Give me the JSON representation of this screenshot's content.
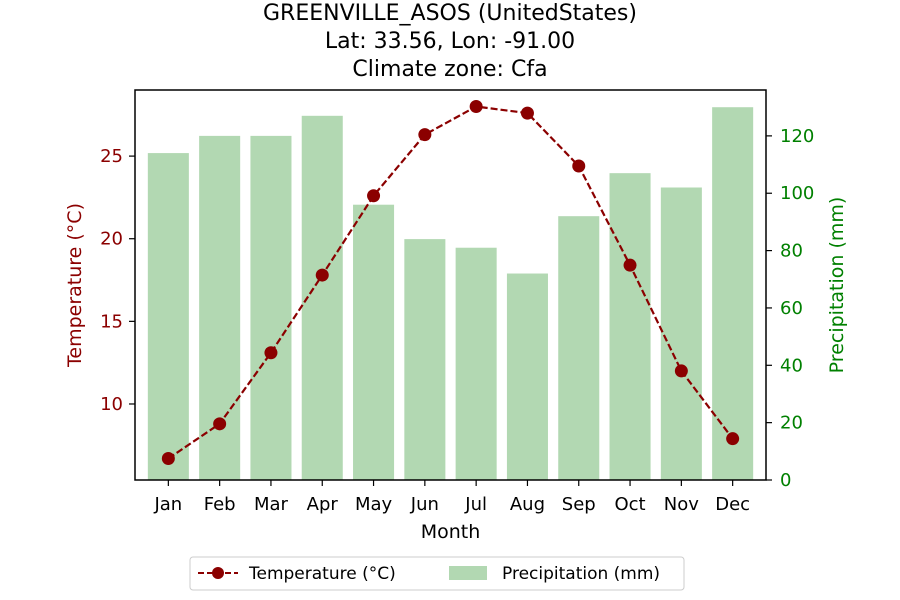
{
  "header": {
    "title_line1": "GREENVILLE_ASOS (UnitedStates)",
    "title_line2": "Lat: 33.56, Lon: -91.00",
    "title_line3": "Climate zone: Cfa"
  },
  "colors": {
    "temperature": "#8b0000",
    "precipitation_bar": "#b2d8b2",
    "precipitation_axis": "#008000"
  },
  "chart_data": {
    "type": "bar+line",
    "categories": [
      "Jan",
      "Feb",
      "Mar",
      "Apr",
      "May",
      "Jun",
      "Jul",
      "Aug",
      "Sep",
      "Oct",
      "Nov",
      "Dec"
    ],
    "xlabel": "Month",
    "series": [
      {
        "name": "Temperature (°C)",
        "type": "line",
        "axis": "left",
        "values": [
          6.7,
          8.8,
          13.1,
          17.8,
          22.6,
          26.3,
          28.0,
          27.6,
          24.4,
          18.4,
          12.0,
          7.9
        ]
      },
      {
        "name": "Precipitation (mm)",
        "type": "bar",
        "axis": "right",
        "values": [
          114,
          120,
          120,
          127,
          96,
          84,
          81,
          72,
          92,
          107,
          102,
          130
        ]
      }
    ],
    "y_left": {
      "label": "Temperature (°C)",
      "range": [
        5.4,
        29.0
      ],
      "ticks": [
        10,
        15,
        20,
        25
      ]
    },
    "y_right": {
      "label": "Precipitation (mm)",
      "range": [
        0,
        136
      ],
      "ticks": [
        0,
        20,
        40,
        60,
        80,
        100,
        120
      ]
    },
    "legend": {
      "placement": "bottom-center",
      "entries": [
        "Temperature (°C)",
        "Precipitation (mm)"
      ]
    },
    "grid": false
  }
}
